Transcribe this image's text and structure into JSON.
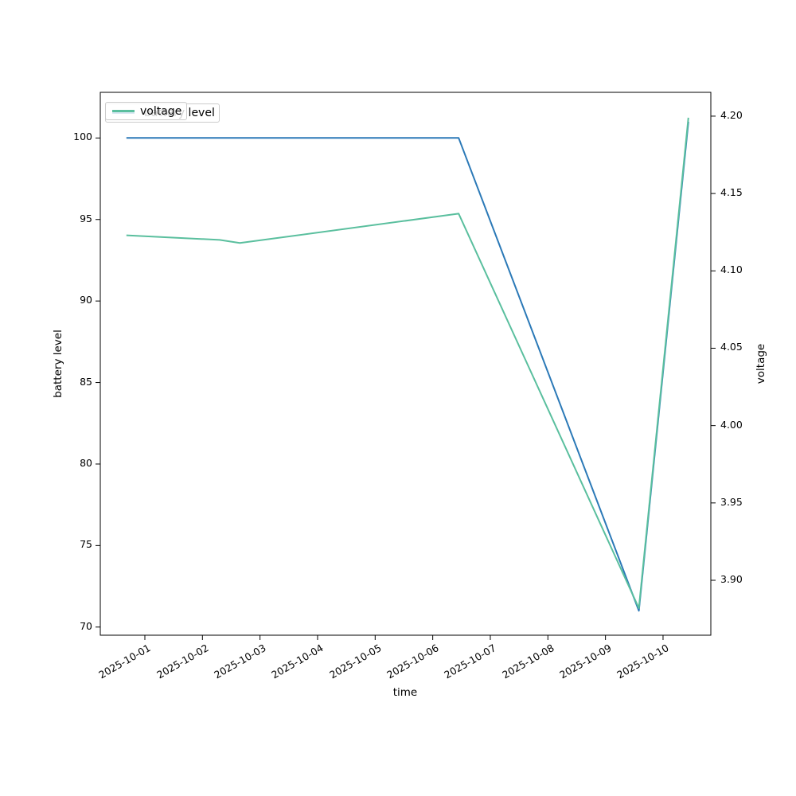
{
  "chart_data": {
    "type": "line",
    "title": "",
    "xlabel": "time",
    "ylabel_left": "battery level",
    "ylabel_right": "voltage",
    "x_ticks": [
      "2025-10-01",
      "2025-10-02",
      "2025-10-03",
      "2025-10-04",
      "2025-10-05",
      "2025-10-06",
      "2025-10-07",
      "2025-10-08",
      "2025-10-09",
      "2025-10-10"
    ],
    "y_ticks_left": [
      "70",
      "75",
      "80",
      "85",
      "90",
      "95",
      "100"
    ],
    "y_ticks_left_values": [
      70,
      75,
      80,
      85,
      90,
      95,
      100
    ],
    "y_ticks_right": [
      "3.90",
      "3.95",
      "4.00",
      "4.05",
      "4.10",
      "4.15",
      "4.20"
    ],
    "y_ticks_right_values": [
      3.9,
      3.95,
      4.0,
      4.05,
      4.1,
      4.15,
      4.2
    ],
    "axes": {
      "xlim_days_from_2025_10_01": [
        -0.774,
        9.83
      ],
      "ylim_left": [
        69.5,
        102.8
      ],
      "ylim_right": [
        3.8645,
        4.2154
      ],
      "grid": false
    },
    "series": [
      {
        "name": "battery level",
        "axis": "left",
        "color": "#2b79b7",
        "x_days_from_2025_10_01": [
          -0.32,
          1.3,
          1.65,
          5.45,
          8.58,
          9.44
        ],
        "values": [
          100,
          100,
          100,
          100,
          71,
          101
        ]
      },
      {
        "name": "voltage",
        "axis": "right",
        "color": "#5abf9e",
        "x_days_from_2025_10_01": [
          -0.32,
          1.3,
          1.65,
          5.45,
          8.58,
          9.44
        ],
        "values": [
          4.123,
          4.12,
          4.118,
          4.137,
          3.882,
          4.199
        ]
      }
    ],
    "legend": {
      "position": "upper-left",
      "front_label": "voltage",
      "front_color": "#5abf9e",
      "back_label": "battery level",
      "back_color": "#2b79b7"
    }
  }
}
